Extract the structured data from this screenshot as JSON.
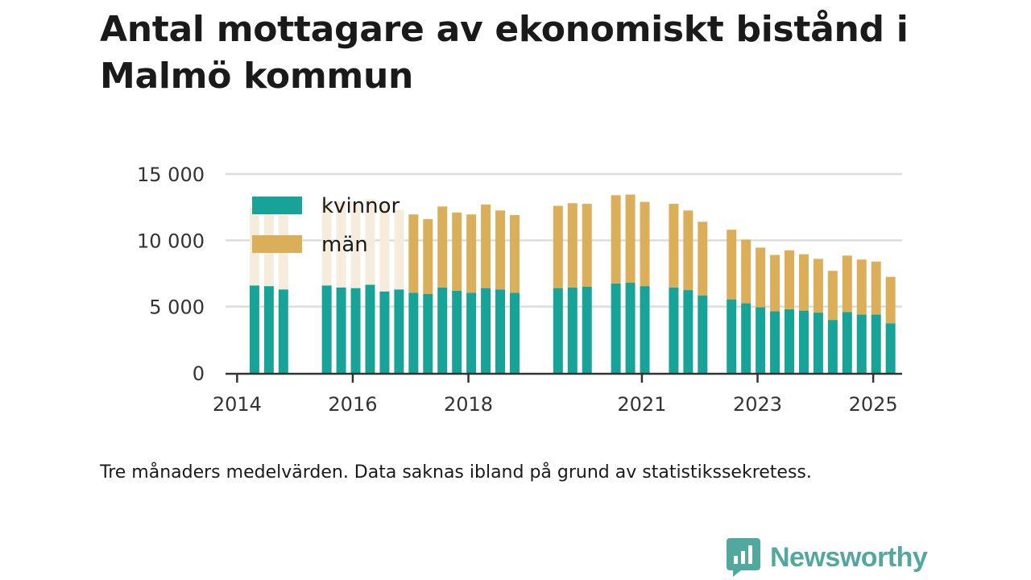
{
  "title": "Antal mottagare av ekonomiskt bistånd i Malmö kommun",
  "note": "Tre månaders medelvärden. Data saknas ibland på grund av statistikssekretess.",
  "brand": {
    "name": "Newsworthy",
    "icon": "newsworthy-logo-icon",
    "color": "#52a89e"
  },
  "chart_data": {
    "type": "bar",
    "stacked": true,
    "title": "Antal mottagare av ekonomiskt bistånd i Malmö kommun",
    "xlabel": "",
    "ylabel": "",
    "ylim": [
      0,
      15000
    ],
    "yticks": [
      0,
      5000,
      10000,
      15000
    ],
    "ytick_labels": [
      "0",
      "5 000",
      "10 000",
      "15 000"
    ],
    "xticks": [
      2014,
      2016,
      2018,
      2021,
      2023,
      2025
    ],
    "xtick_labels": [
      "2014",
      "2016",
      "2018",
      "2021",
      "2023",
      "2025"
    ],
    "xlim": [
      2013.8,
      2025.5
    ],
    "grid": "horizontal",
    "legend_position": "top-left",
    "colors": {
      "kvinnor": "#17a398",
      "man": "#dbaf5a",
      "man_faded": "#f6ecdd",
      "grid": "#dddddd",
      "axis": "#333333"
    },
    "x": [
      2014.3,
      2014.55,
      2014.8,
      2015.55,
      2015.8,
      2016.05,
      2016.3,
      2016.55,
      2016.8,
      2017.05,
      2017.3,
      2017.55,
      2017.8,
      2018.05,
      2018.3,
      2018.55,
      2018.8,
      2019.55,
      2019.8,
      2020.05,
      2020.55,
      2020.8,
      2021.05,
      2021.55,
      2021.8,
      2022.05,
      2022.55,
      2022.8,
      2023.05,
      2023.3,
      2023.55,
      2023.8,
      2024.05,
      2024.3,
      2024.55,
      2024.8,
      2025.05,
      2025.3
    ],
    "faded_from_start": 9,
    "series": [
      {
        "name": "kvinnor",
        "values": [
          6600,
          6550,
          6300,
          6600,
          6450,
          6400,
          6650,
          6150,
          6300,
          6050,
          5950,
          6450,
          6200,
          6050,
          6400,
          6300,
          6050,
          6400,
          6450,
          6500,
          6750,
          6800,
          6550,
          6450,
          6250,
          5850,
          5550,
          5250,
          4950,
          4650,
          4800,
          4700,
          4550,
          4000,
          4600,
          4400,
          4400,
          3750
        ]
      },
      {
        "name": "män",
        "values": [
          5900,
          6000,
          6300,
          6350,
          6450,
          6550,
          6450,
          6700,
          6000,
          5900,
          5650,
          6100,
          5900,
          5900,
          6300,
          5950,
          5850,
          6200,
          6350,
          6250,
          6650,
          6650,
          6350,
          6300,
          6000,
          5550,
          5250,
          4800,
          4500,
          4250,
          4450,
          4250,
          4050,
          3700,
          4250,
          4150,
          4000,
          3500
        ]
      }
    ]
  }
}
